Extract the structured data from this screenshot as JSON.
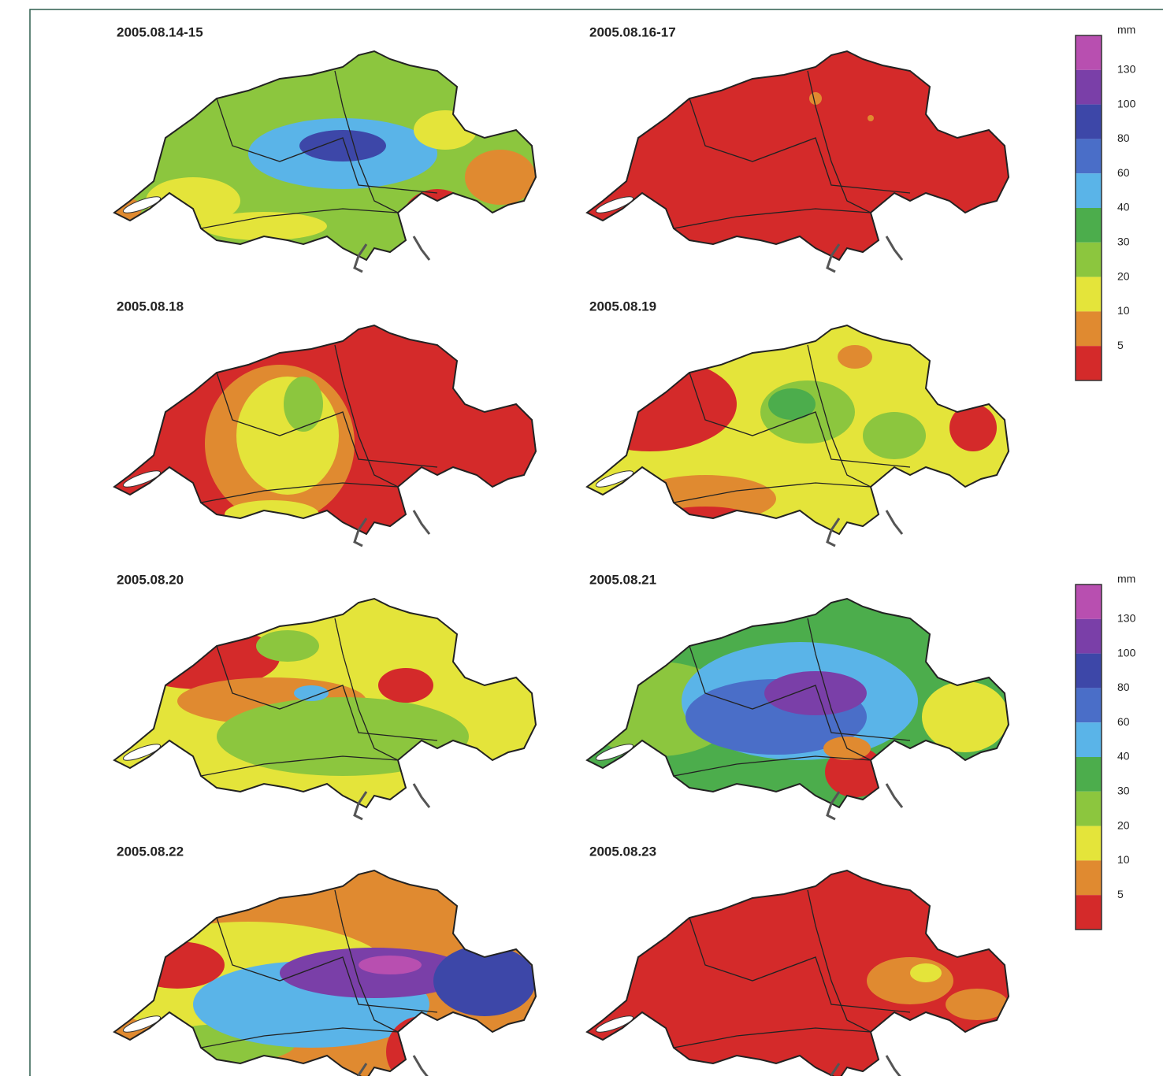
{
  "panels": [
    {
      "label": "2005.08.14-15"
    },
    {
      "label": "2005.08.16-17"
    },
    {
      "label": "2005.08.18"
    },
    {
      "label": "2005.08.19"
    },
    {
      "label": "2005.08.20"
    },
    {
      "label": "2005.08.21"
    },
    {
      "label": "2005.08.22"
    },
    {
      "label": "2005.08.23"
    }
  ],
  "legends": [
    {
      "unit": "mm",
      "labels": [
        130,
        100,
        80,
        60,
        40,
        30,
        20,
        10,
        5
      ]
    },
    {
      "unit": "mm",
      "labels": [
        130,
        100,
        80,
        60,
        40,
        30,
        20,
        10,
        5
      ]
    }
  ]
}
